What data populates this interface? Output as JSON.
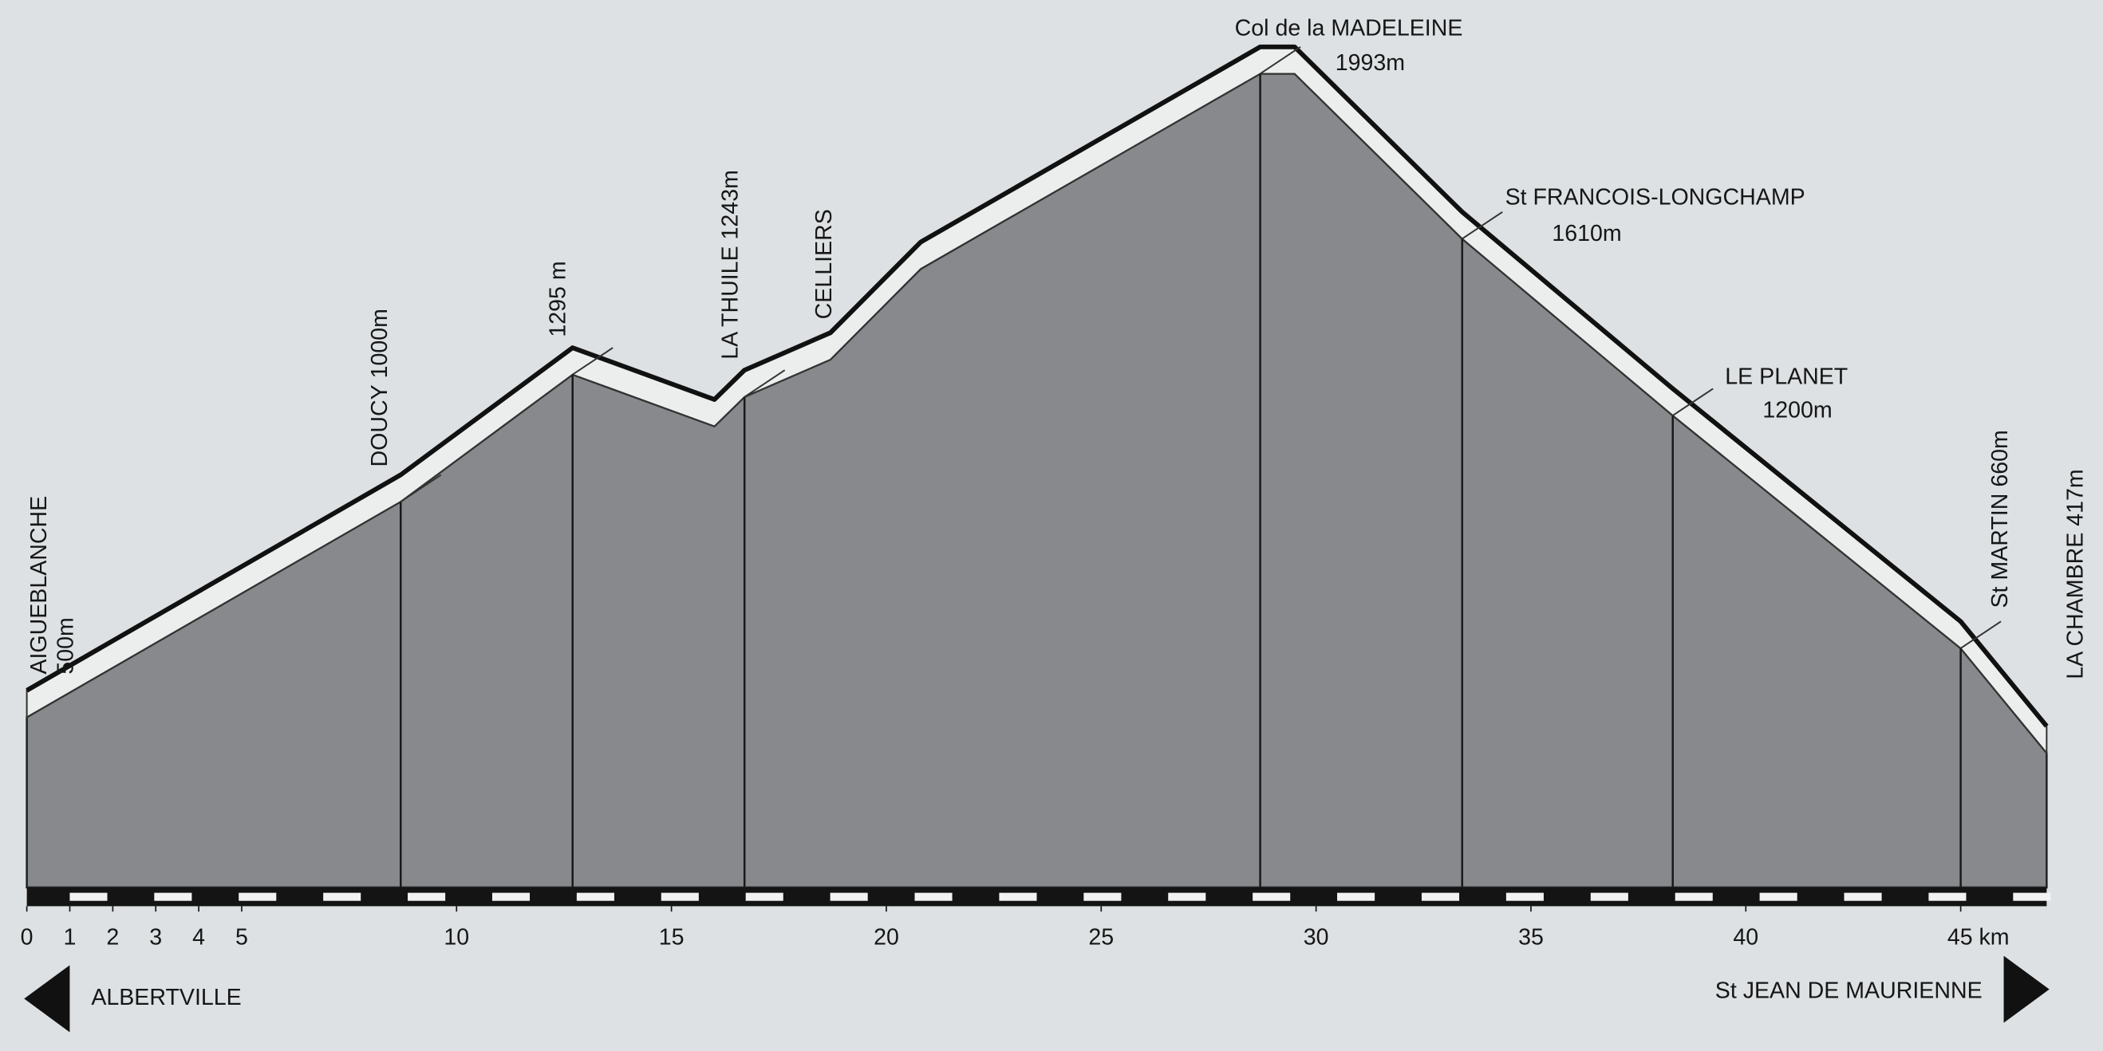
{
  "chart_data": {
    "type": "area",
    "x": [
      0,
      8.7,
      12.7,
      16.0,
      16.7,
      18.7,
      20.8,
      28.7,
      29.5,
      33.4,
      38.3,
      45,
      47
    ],
    "values": [
      500,
      1000,
      1295,
      1175,
      1243,
      1330,
      1540,
      1993,
      1993,
      1610,
      1200,
      660,
      417
    ],
    "value_labels": [
      "500m",
      "1000m",
      "1295 m",
      null,
      "1243m",
      null,
      null,
      "1993m",
      null,
      "1610m",
      "1200m",
      "660m",
      "417m"
    ],
    "place_names": [
      "AIGUEBLANCHE",
      "DOUCY",
      null,
      null,
      "LA THUILE",
      "CELLIERS",
      null,
      "Col de la MADELEINE",
      null,
      "St FRANCOIS-LONGCHAMP",
      "LE PLANET",
      "St MARTIN",
      "LA CHAMBRE"
    ],
    "xlim": [
      0,
      47
    ],
    "xticks": [
      0,
      1,
      2,
      3,
      4,
      5,
      10,
      15,
      20,
      25,
      30,
      35,
      40,
      {
        "value": 45,
        "label": "45 km"
      }
    ],
    "direction_left": "ALBERTVILLE",
    "direction_right": "St JEAN DE MAURIENNE"
  }
}
